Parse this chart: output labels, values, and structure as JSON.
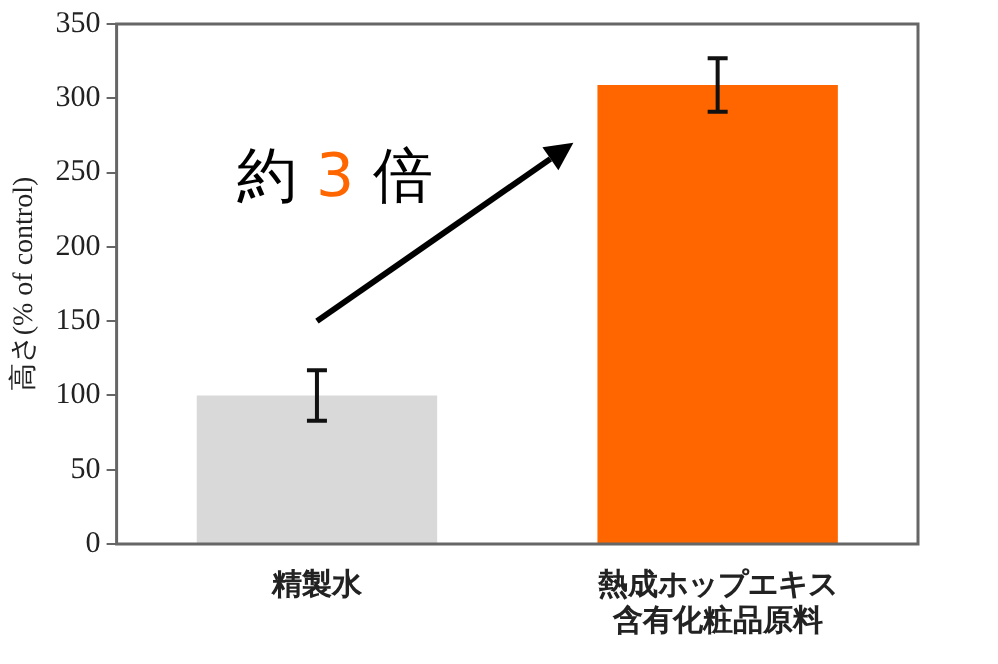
{
  "chart_data": {
    "type": "bar",
    "ylabel": "高さ(% of control)",
    "categories": [
      "精製水",
      "熱成ホップエキス含有化粧品原料"
    ],
    "values": [
      100,
      309
    ],
    "errors": [
      17,
      18
    ],
    "colors": [
      "#d9d9d9",
      "#ff6600"
    ],
    "ylim": [
      0,
      350
    ],
    "yticks": [
      0,
      50,
      100,
      150,
      200,
      250,
      300,
      350
    ],
    "grid": false,
    "legend": false,
    "annotations": [
      "約 3 倍"
    ]
  }
}
